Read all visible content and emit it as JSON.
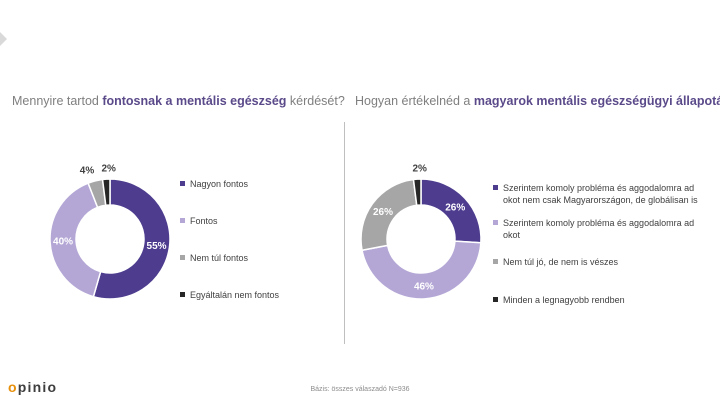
{
  "questions": {
    "q1": {
      "pre": "Mennyire tartod ",
      "bold": "fontosnak a mentális egészség",
      "post": " kérdését?"
    },
    "q2": {
      "pre": "Hogyan értékelnéd a ",
      "bold": "magyarok mentális egészségügyi állapotát?",
      "post": ""
    }
  },
  "chart_data": [
    {
      "type": "pie",
      "title": "Mennyire tartod fontosnak a mentális egészség kérdését?",
      "categories": [
        "Nagyon fontos",
        "Fontos",
        "Nem túl fontos",
        "Egyáltalán nem fontos"
      ],
      "values": [
        55,
        40,
        4,
        2
      ],
      "labels": [
        "55%",
        "40%",
        "4%",
        "2%"
      ],
      "colors": [
        "#4e3d8f",
        "#b4a7d6",
        "#a6a6a6",
        "#262626"
      ],
      "legend_position": "right"
    },
    {
      "type": "pie",
      "title": "Hogyan értékelnéd a magyarok mentális egészségügyi állapotát?",
      "categories": [
        "Szerintem komoly probléma és aggodalomra ad okot nem csak Magyarországon, de globálisan is",
        "Szerintem komoly probléma és aggodalomra ad okot",
        "Nem túl jó, de nem is vészes",
        "Minden a legnagyobb rendben"
      ],
      "values": [
        26,
        46,
        26,
        2
      ],
      "labels": [
        "26%",
        "46%",
        "26%",
        "2%"
      ],
      "colors": [
        "#4e3d8f",
        "#b4a7d6",
        "#a6a6a6",
        "#262626"
      ],
      "legend_position": "right"
    }
  ],
  "legend2_lines": [
    [
      "Szerintem komoly probléma és aggodalomra ad",
      "okot nem csak Magyarországon, de globálisan is"
    ],
    [
      "Szerintem komoly probléma és aggodalomra ad",
      "okot"
    ],
    [
      "Nem túl jó, de nem is vészes"
    ],
    [
      "Minden a legnagyobb rendben"
    ]
  ],
  "footer": {
    "logo": "opinio",
    "note": "Bázis: összes válaszadó N=936"
  }
}
